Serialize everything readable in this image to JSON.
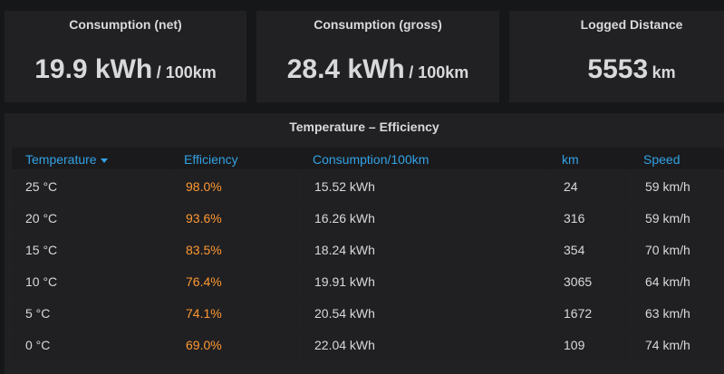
{
  "stats": [
    {
      "title": "Consumption (net)",
      "value": "19.9 kWh",
      "unit": "/ 100km"
    },
    {
      "title": "Consumption (gross)",
      "value": "28.4 kWh",
      "unit": "/ 100km"
    },
    {
      "title": "Logged Distance",
      "value": "5553",
      "unit": "km"
    }
  ],
  "table": {
    "title": "Temperature – Efficiency",
    "headers": [
      "Temperature",
      "Efficiency",
      "Consumption/100km",
      "km",
      "Speed"
    ],
    "rows": [
      [
        "25 °C",
        "98.0%",
        "15.52 kWh",
        "24",
        "59 km/h"
      ],
      [
        "20 °C",
        "93.6%",
        "16.26 kWh",
        "316",
        "59 km/h"
      ],
      [
        "15 °C",
        "83.5%",
        "18.24 kWh",
        "354",
        "70 km/h"
      ],
      [
        "10 °C",
        "76.4%",
        "19.91 kWh",
        "3065",
        "64 km/h"
      ],
      [
        "5 °C",
        "74.1%",
        "20.54 kWh",
        "1672",
        "63 km/h"
      ],
      [
        "0 °C",
        "69.0%",
        "22.04 kWh",
        "109",
        "74 km/h"
      ]
    ]
  }
}
